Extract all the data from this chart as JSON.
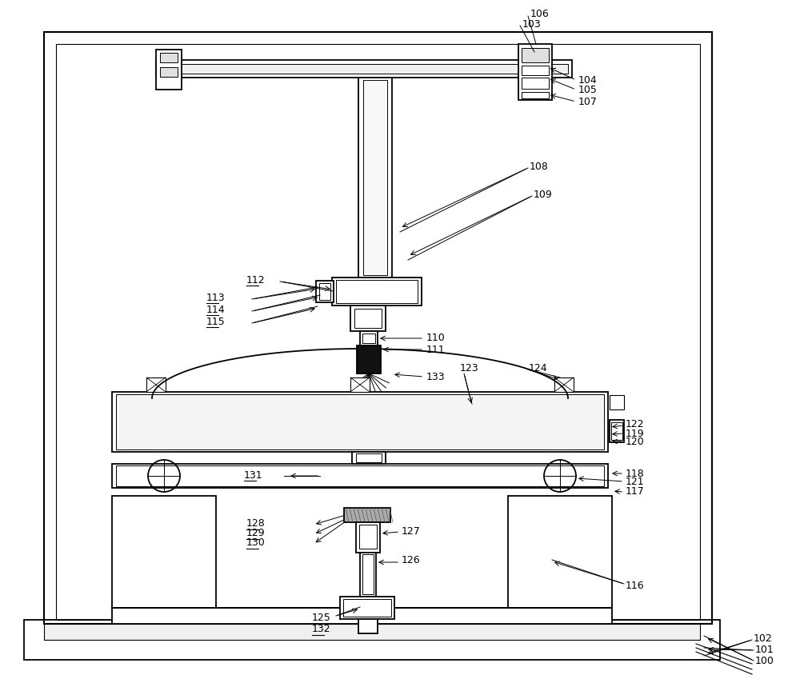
{
  "bg_color": "#ffffff",
  "lc": "#000000",
  "lw": 1.3,
  "fs": 9,
  "fig_w": 10.0,
  "fig_h": 8.49,
  "dpi": 100
}
